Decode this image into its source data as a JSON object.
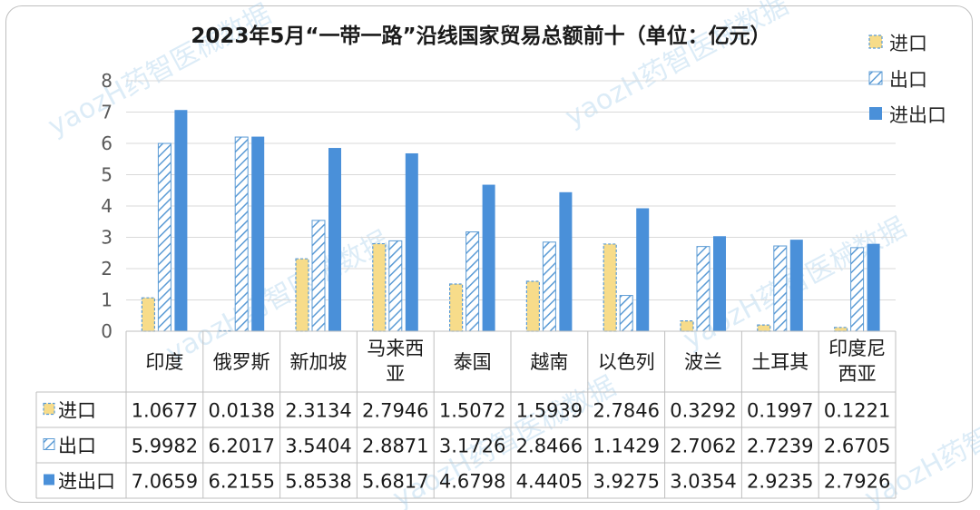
{
  "chart_data": {
    "type": "bar",
    "title": "2023年5月“一带一路”沿线国家贸易总额前十（单位：亿元）",
    "categories": [
      "印度",
      "俄罗斯",
      "新加坡",
      "马来西亚",
      "泰国",
      "越南",
      "以色列",
      "波兰",
      "土耳其",
      "印度尼西亚"
    ],
    "category_lines": [
      [
        "印度"
      ],
      [
        "俄罗斯"
      ],
      [
        "新加坡"
      ],
      [
        "马来西",
        "亚"
      ],
      [
        "泰国"
      ],
      [
        "越南"
      ],
      [
        "以色列"
      ],
      [
        "波兰"
      ],
      [
        "土耳其"
      ],
      [
        "印度尼",
        "西亚"
      ]
    ],
    "series": [
      {
        "name": "进口",
        "style": "dashed-yellow",
        "values": [
          1.0677,
          0.0138,
          2.3134,
          2.7946,
          1.5072,
          1.5939,
          2.7846,
          0.3292,
          0.1997,
          0.1221
        ]
      },
      {
        "name": "出口",
        "style": "hatched-blue",
        "values": [
          5.9982,
          6.2017,
          3.5404,
          2.8871,
          3.1726,
          2.8466,
          1.1429,
          2.7062,
          2.7239,
          2.6705
        ]
      },
      {
        "name": "进出口",
        "style": "solid-blue",
        "values": [
          7.0659,
          6.2155,
          5.8538,
          5.6817,
          4.6798,
          4.4405,
          3.9275,
          3.0354,
          2.9235,
          2.7926
        ]
      }
    ],
    "table_cells": [
      [
        "1.0677",
        "0.0138",
        "2.3134",
        "2.7946",
        "1.5072",
        "1.5939",
        "2.7846",
        "0.3292",
        "0.1997",
        "0.1221"
      ],
      [
        "5.9982",
        "6.2017",
        "3.5404",
        "2.8871",
        "3.1726",
        "2.8466",
        "1.1429",
        "2.7062",
        "2.7239",
        "2.6705"
      ],
      [
        "7.0659",
        "6.2155",
        "5.8538",
        "5.6817",
        "4.6798",
        "4.4405",
        "3.9275",
        "3.0354",
        "2.9235",
        "2.7926"
      ]
    ],
    "ylim": [
      0,
      8
    ],
    "yticks": [
      "0",
      "1",
      "2",
      "3",
      "4",
      "5",
      "6",
      "7",
      "8"
    ],
    "grid": true,
    "legend_position": "top-right",
    "data_table": true
  },
  "colors": {
    "import_fill": "#f7dc8a",
    "import_border": "#5b9bd5",
    "export_hatch": "#5b9bd5",
    "total_fill": "#4a90d9",
    "grid": "#d9d9d9"
  },
  "watermark": "yaozH药智医械数据"
}
